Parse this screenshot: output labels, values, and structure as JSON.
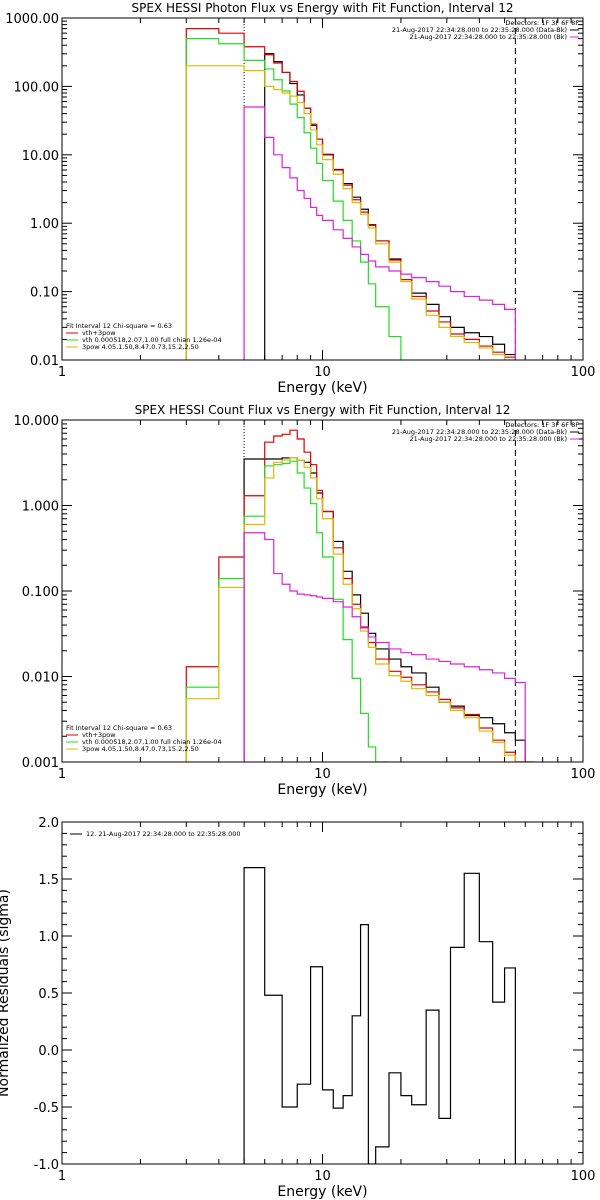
{
  "chart_data": [
    {
      "type": "line",
      "title": "SPEX HESSI Photon Flux vs Energy with Fit Function, Interval 12",
      "xlabel": "Energy (keV)",
      "ylabel": "",
      "xscale": "log",
      "yscale": "log",
      "xlim": [
        1,
        100
      ],
      "ylim": [
        0.01,
        1000
      ],
      "x_ticks": [
        "1",
        "10",
        "100"
      ],
      "y_ticks": [
        "0.01",
        "0.10",
        "1.00",
        "10.00",
        "100.00",
        "1000.00"
      ],
      "bin_edges": [
        3,
        4,
        5,
        6,
        6.5,
        7,
        7.5,
        8,
        8.5,
        9,
        9.5,
        10,
        11,
        12,
        13,
        14,
        15,
        16,
        18,
        20,
        22,
        25,
        28,
        31,
        35,
        40,
        45,
        50,
        55
      ],
      "series": [
        {
          "name": "Data",
          "color": "#000000",
          "values": [
            null,
            null,
            null,
            300,
            230,
            160,
            110,
            75,
            48,
            27,
            17,
            10,
            6.1,
            3.8,
            2.4,
            1.6,
            0.95,
            0.55,
            0.3,
            0.15,
            0.095,
            0.065,
            0.043,
            0.03,
            0.025,
            0.022,
            0.017,
            0.012
          ]
        },
        {
          "name": "vth+3pow",
          "color": "#dd0000",
          "values": [
            700,
            600,
            380,
            290,
            220,
            160,
            118,
            85,
            48,
            28,
            17,
            10.2,
            6.0,
            3.6,
            2.2,
            1.45,
            0.93,
            0.55,
            0.29,
            0.15,
            0.085,
            0.052,
            0.036,
            0.024,
            0.02,
            0.016,
            0.013,
            0.011
          ]
        },
        {
          "name": "vth 0.000518,2.07,1.00 full chian 1.26e-04",
          "color": "#22dd22",
          "values": [
            500,
            420,
            240,
            180,
            125,
            86,
            55,
            35,
            21,
            12.5,
            7.5,
            4.2,
            2.1,
            1.1,
            0.55,
            0.27,
            0.13,
            0.06,
            0.022,
            null,
            null,
            null,
            null,
            null,
            null,
            null,
            null,
            null
          ]
        },
        {
          "name": "3pow 4.05,1.50,8.47,0.73,15.2,2.50",
          "color": "#ddbb00",
          "values": [
            200,
            200,
            170,
            100,
            90,
            80,
            72,
            58,
            40,
            23,
            14,
            8.5,
            5.2,
            3.2,
            2.0,
            1.35,
            0.85,
            0.5,
            0.27,
            0.14,
            0.078,
            0.045,
            0.03,
            0.022,
            0.018,
            0.015,
            0.012,
            0.01
          ]
        },
        {
          "name": "Bk",
          "color": "#dd22dd",
          "values": [
            null,
            null,
            50,
            18,
            10,
            6.5,
            4.6,
            3.0,
            2.3,
            1.7,
            1.3,
            1.1,
            0.8,
            0.6,
            0.45,
            0.35,
            0.28,
            0.23,
            0.2,
            0.18,
            0.16,
            0.14,
            0.12,
            0.1,
            0.085,
            0.075,
            0.065,
            0.055
          ]
        }
      ],
      "verticals": [
        {
          "x": 5,
          "style": "dotted"
        },
        {
          "x": 55,
          "style": "dashed"
        }
      ],
      "legend_topright": [
        "Detectors: 1F 3F 6F 8F",
        "21-Aug-2017 22:34:28.000 to 22:35:28.000 (Data-Bk)",
        "21-Aug-2017 22:34:28.000 to 22:35:28.000 (Bk)"
      ],
      "legend_bottomleft": [
        "Fit Interval 12   Chi-square = 0.63",
        "vth+3pow",
        "vth 0.000518,2.07,1.00  full chian 1.26e-04",
        "3pow 4.05,1.50,8.47,0.73,15.2,2.50"
      ]
    },
    {
      "type": "line",
      "title": "SPEX HESSI Count Flux vs Energy with Fit Function, Interval 12",
      "xlabel": "Energy (keV)",
      "ylabel": "",
      "xscale": "log",
      "yscale": "log",
      "xlim": [
        1,
        100
      ],
      "ylim": [
        0.001,
        10
      ],
      "x_ticks": [
        "1",
        "10",
        "100"
      ],
      "y_ticks": [
        "0.001",
        "0.010",
        "0.100",
        "1.000",
        "10.000"
      ],
      "bin_edges": [
        3,
        4,
        5,
        6,
        6.5,
        7,
        7.5,
        8,
        8.5,
        9,
        9.5,
        10,
        11,
        12,
        13,
        14,
        15,
        16,
        18,
        20,
        22,
        25,
        28,
        31,
        35,
        40,
        45,
        50,
        55,
        60,
        65
      ],
      "series": [
        {
          "name": "Data",
          "color": "#000000",
          "values": [
            null,
            null,
            3.5,
            3.5,
            3.5,
            3.6,
            3.6,
            3.4,
            3.2,
            2.4,
            1.4,
            0.85,
            0.38,
            0.17,
            0.09,
            0.055,
            0.032,
            0.021,
            0.016,
            0.013,
            0.011,
            0.0075,
            0.005,
            0.0045,
            0.0035,
            0.0033,
            0.0028,
            0.0022,
            0.0018,
            null
          ]
        },
        {
          "name": "vth+3pow",
          "color": "#dd0000",
          "values": [
            0.013,
            0.25,
            1.3,
            5.5,
            6.5,
            6.8,
            7.6,
            6.0,
            4.2,
            3.0,
            1.5,
            0.85,
            0.32,
            0.14,
            0.07,
            0.038,
            0.025,
            0.016,
            0.0115,
            0.0098,
            0.008,
            0.0066,
            0.0054,
            0.0043,
            0.0036,
            0.0025,
            0.0018,
            0.0013,
            0.00095,
            0.0008
          ]
        },
        {
          "name": "vth 0.000518,2.07,1.00 full chian 1.26e-04",
          "color": "#22dd22",
          "values": [
            0.0075,
            0.14,
            0.75,
            2.9,
            3.0,
            3.1,
            3.3,
            2.4,
            1.6,
            1.05,
            0.48,
            0.25,
            0.08,
            0.027,
            0.0095,
            0.0037,
            0.0015,
            0.0009,
            null,
            null,
            null,
            null,
            null,
            null,
            null,
            null,
            null,
            null,
            null,
            null
          ]
        },
        {
          "name": "3pow 4.05,1.50,8.47,0.73,15.2,2.50",
          "color": "#ddbb00",
          "values": [
            0.0055,
            0.11,
            0.6,
            2.1,
            3.2,
            3.4,
            3.6,
            3.4,
            2.8,
            2.1,
            1.2,
            0.7,
            0.27,
            0.12,
            0.062,
            0.034,
            0.022,
            0.014,
            0.0102,
            0.0088,
            0.0072,
            0.006,
            0.005,
            0.004,
            0.0033,
            0.0023,
            0.0017,
            0.0012,
            0.0009,
            0.0008
          ]
        },
        {
          "name": "Bk",
          "color": "#dd22dd",
          "values": [
            null,
            null,
            0.48,
            0.4,
            0.16,
            0.12,
            0.1,
            0.092,
            0.09,
            0.088,
            0.085,
            0.082,
            0.075,
            0.065,
            0.05,
            0.037,
            0.029,
            0.025,
            0.021,
            0.019,
            0.018,
            0.016,
            0.015,
            0.014,
            0.013,
            0.012,
            0.011,
            0.0095,
            0.0085,
            null
          ]
        }
      ],
      "verticals": [
        {
          "x": 5,
          "style": "dotted"
        },
        {
          "x": 55,
          "style": "dashed"
        }
      ],
      "legend_topright": [
        "Detectors: 1F 3F 6F 8F",
        "21-Aug-2017 22:34:28.000 to 22:35:28.000 (Data-Bk)",
        "21-Aug-2017 22:34:28.000 to 22:35:28.000 (Bk)"
      ],
      "legend_bottomleft": [
        "Fit Interval 12   Chi-square = 0.63",
        "vth+3pow",
        "vth 0.000518,2.07,1.00  full chian 1.26e-04",
        "3pow 4.05,1.50,8.47,0.73,15.2,2.50"
      ]
    },
    {
      "type": "line",
      "title": "",
      "xlabel": "Energy (keV)",
      "ylabel": "Normalized Residuals (sigma)",
      "xscale": "log",
      "yscale": "linear",
      "xlim": [
        1,
        100
      ],
      "ylim": [
        -1.0,
        2.0
      ],
      "x_ticks": [
        "1",
        "10",
        "100"
      ],
      "y_ticks": [
        "-1.0",
        "-0.5",
        "0.0",
        "0.5",
        "1.0",
        "1.5",
        "2.0"
      ],
      "bin_edges": [
        5,
        6,
        7,
        8,
        9,
        10,
        11,
        12,
        13,
        14,
        15,
        16,
        18,
        20,
        22,
        25,
        28,
        31,
        35,
        40,
        45,
        50,
        55
      ],
      "series": [
        {
          "name": "12. 21-Aug-2017 22:34:28.000 to 22:35:28.000",
          "color": "#000000",
          "values": [
            1.6,
            0.48,
            -0.5,
            -0.3,
            0.73,
            -0.35,
            -0.51,
            -0.4,
            0.3,
            1.1,
            -1.0,
            -0.85,
            -0.2,
            -0.4,
            -0.48,
            0.35,
            -0.6,
            0.9,
            1.55,
            0.95,
            0.42,
            0.72
          ]
        }
      ],
      "legend_topleft": [
        "12. 21-Aug-2017 22:34:28.000 to 22:35:28.000"
      ]
    }
  ]
}
